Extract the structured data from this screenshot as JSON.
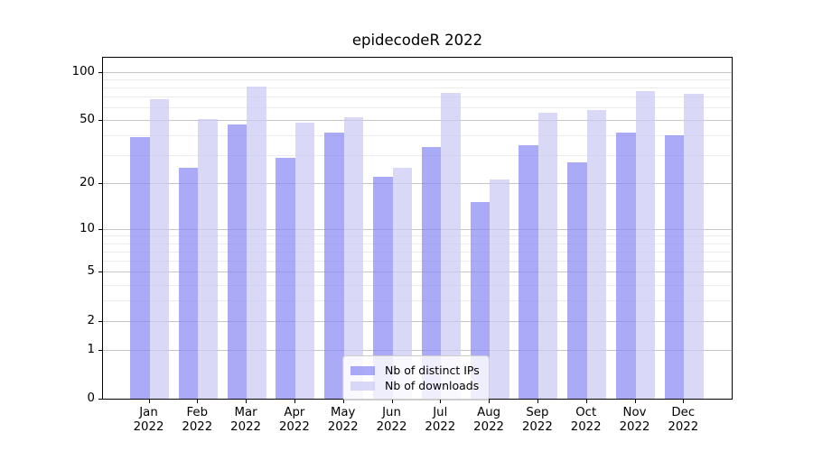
{
  "title": "epidecodeR 2022",
  "chart_data": {
    "type": "bar",
    "title": "epidecodeR 2022",
    "categories": [
      "Jan",
      "Feb",
      "Mar",
      "Apr",
      "May",
      "Jun",
      "Jul",
      "Aug",
      "Sep",
      "Oct",
      "Nov",
      "Dec"
    ],
    "year": "2022",
    "series": [
      {
        "name": "Nb of distinct IPs",
        "color": "rgba(134,134,242,0.70)",
        "values": [
          39,
          25,
          47,
          29,
          42,
          22,
          34,
          15,
          35,
          27,
          42,
          40
        ]
      },
      {
        "name": "Nb of downloads",
        "color": "rgba(203,203,244,0.72)",
        "values": [
          68,
          51,
          81,
          48,
          52,
          25,
          74,
          21,
          56,
          58,
          76,
          73
        ]
      }
    ],
    "xlabel": "",
    "ylabel": "",
    "yscale": "log1p",
    "ylim": [
      0,
      124
    ],
    "y_ticks": [
      0,
      1,
      2,
      5,
      10,
      20,
      50,
      100
    ],
    "y_minor_ticks": [
      3,
      4,
      6,
      7,
      8,
      9,
      30,
      40,
      60,
      70,
      80,
      90
    ],
    "grid": true,
    "legend_position": "lower center",
    "colors": {
      "grid_major": "#c6c6c6",
      "grid_minor": "#ebebeb",
      "spine": "#000000",
      "background": "#ffffff"
    }
  }
}
